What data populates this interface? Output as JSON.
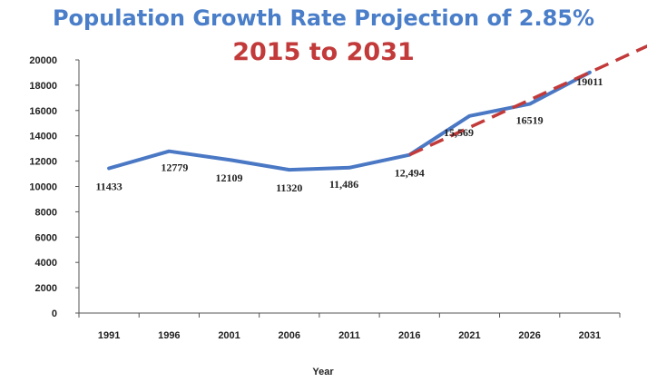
{
  "title": "Population Growth Rate Projection of 2.85%",
  "subtitle": "2015 to 2031",
  "colors": {
    "title": "#4a7ec9",
    "subtitle": "#c23a3a",
    "line": "#4a78c4",
    "projection": "#c23a3a",
    "axis": "#555555"
  },
  "chart_data": {
    "type": "line",
    "categories": [
      "1991",
      "1996",
      "2001",
      "2006",
      "2011",
      "2016",
      "2021",
      "2026",
      "2031"
    ],
    "xlabel": "Year",
    "ylabel": "",
    "ylim": [
      0,
      20000
    ],
    "yticks": [
      "0",
      "2000",
      "4000",
      "6000",
      "8000",
      "10000",
      "12000",
      "14000",
      "16000",
      "18000",
      "20000"
    ],
    "grid": false,
    "series": [
      {
        "values": [
          11433,
          12779,
          12109,
          11320,
          11486,
          12494,
          15569,
          16519,
          19011
        ],
        "labels": [
          "11433",
          "12779",
          "12109",
          "11320",
          "11,486",
          "12,494",
          "15,569",
          "16519",
          "19011"
        ],
        "style": "solid"
      },
      {
        "x": [
          "2016",
          "2031"
        ],
        "values": [
          12494,
          19011
        ],
        "style": "dashed-arrow"
      }
    ]
  }
}
